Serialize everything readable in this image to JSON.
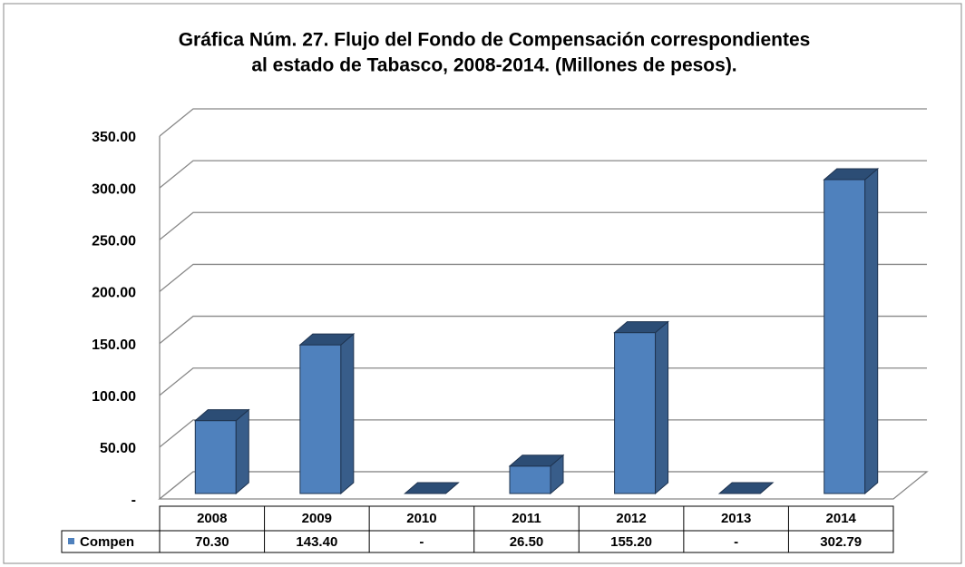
{
  "chart_data": {
    "type": "bar3d",
    "title": [
      "Gráfica Núm. 27. Flujo del Fondo de Compensación correspondientes",
      "al estado de Tabasco, 2008-2014. (Millones de pesos)."
    ],
    "categories": [
      "2008",
      "2009",
      "2010",
      "2011",
      "2012",
      "2013",
      "2014"
    ],
    "series": [
      {
        "name": "Compen",
        "color": "#4f81bd",
        "values": [
          70.3,
          143.4,
          0,
          26.5,
          155.2,
          0,
          302.79
        ],
        "value_labels": [
          "70.30",
          "143.40",
          "-",
          "26.50",
          "155.20",
          "-",
          "302.79"
        ]
      }
    ],
    "ylim": [
      0,
      350
    ],
    "yticks": [
      {
        "value": 0,
        "label": "-"
      },
      {
        "value": 50,
        "label": "50.00"
      },
      {
        "value": 100,
        "label": "100.00"
      },
      {
        "value": 150,
        "label": "150.00"
      },
      {
        "value": 200,
        "label": "200.00"
      },
      {
        "value": 250,
        "label": "250.00"
      },
      {
        "value": 300,
        "label": "300.00"
      },
      {
        "value": 350,
        "label": "350.00"
      }
    ],
    "grid": true
  }
}
